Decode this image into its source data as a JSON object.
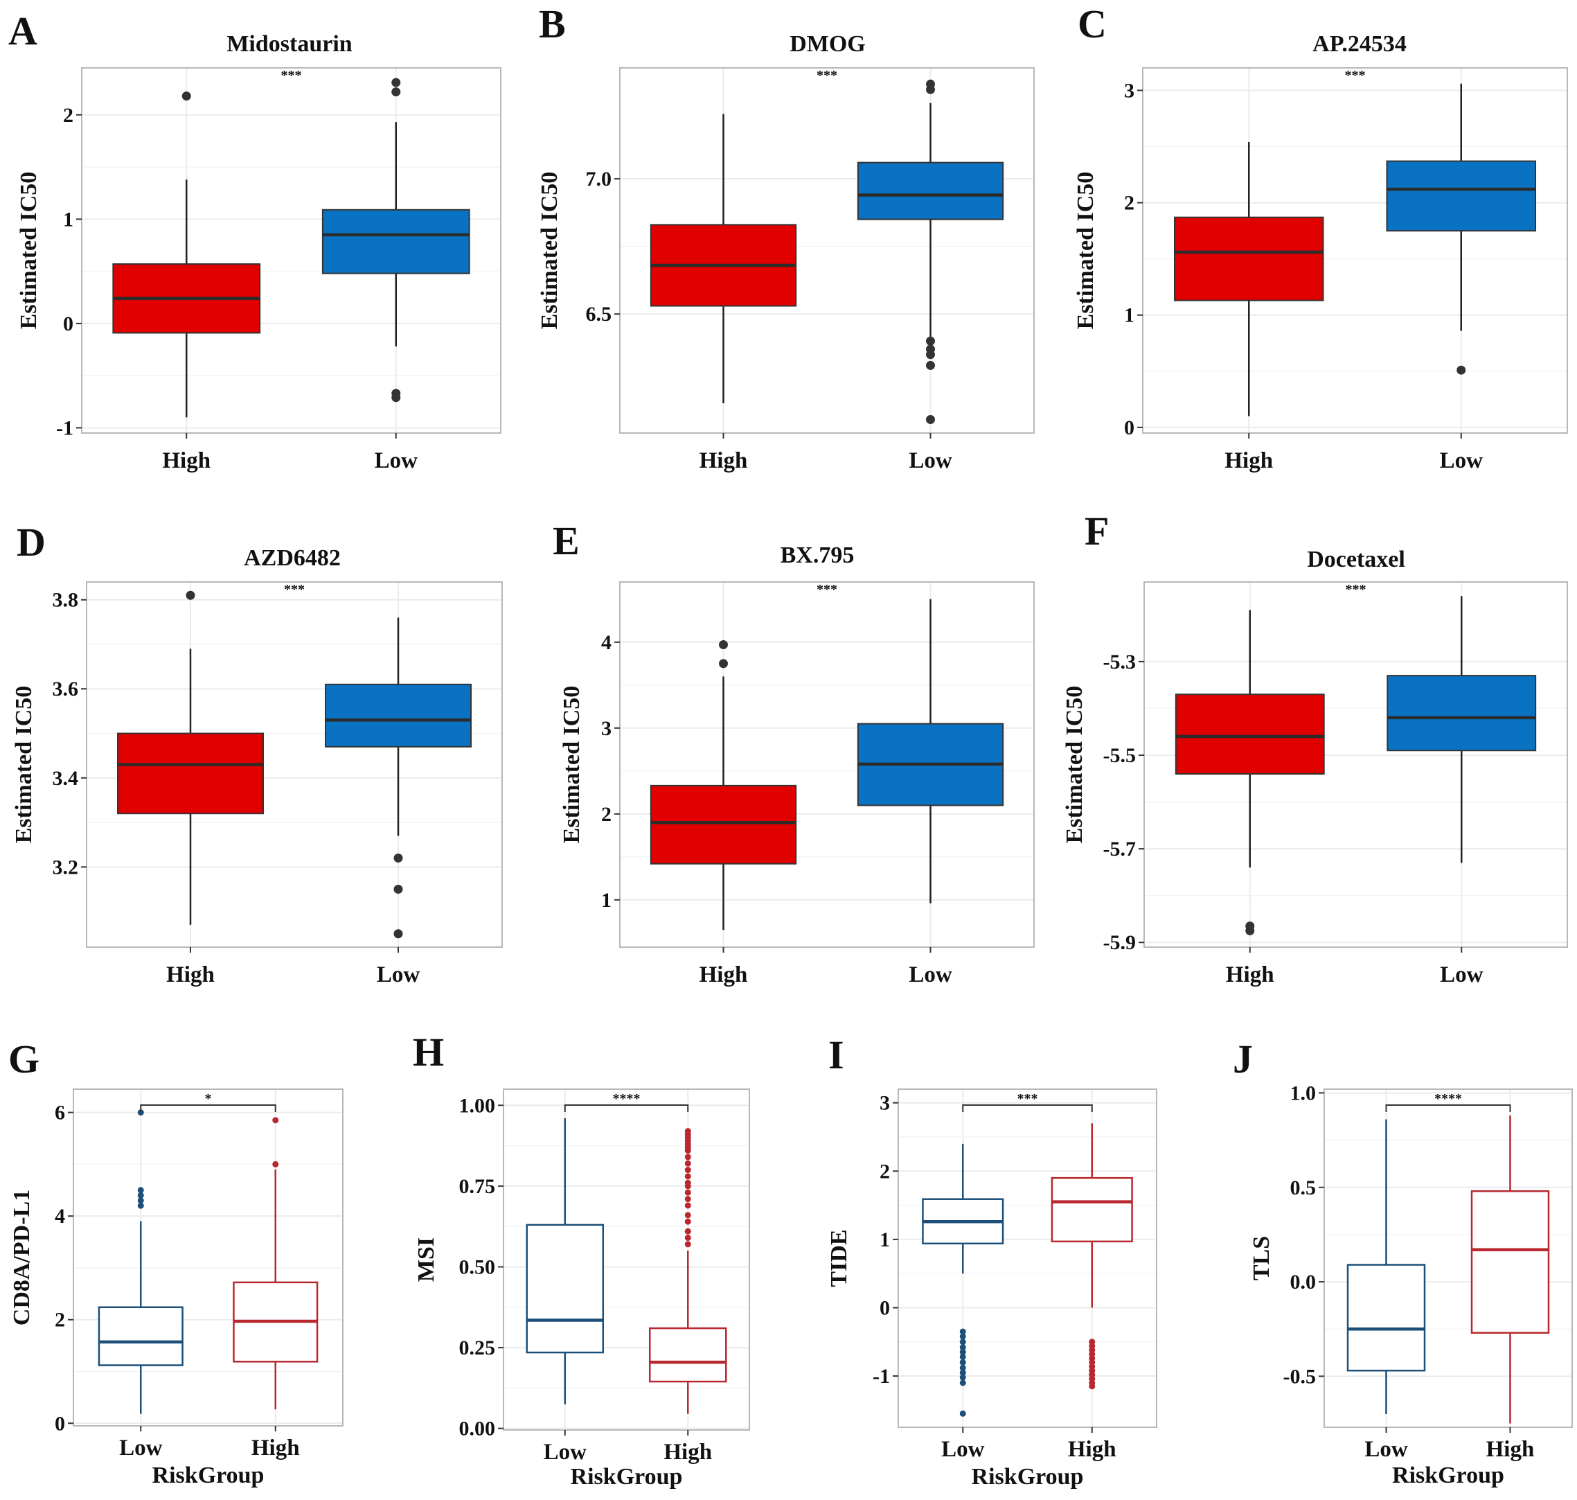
{
  "figure": {
    "colors": {
      "high_fill": "#e00000",
      "low_fill": "#0a72c2",
      "low_line": "#1c4f7a",
      "high_line": "#b8282e",
      "box_edge": "#333333",
      "median_dark": "#2b2b2b",
      "grid": "#ebebeb",
      "panel_border": "#b8b8b8"
    }
  },
  "chart_data": [
    {
      "panel": "A",
      "type": "box",
      "style": "filled",
      "title": "Midostaurin",
      "xlabel": "",
      "ylabel": "Estimated IC50",
      "significance": "***",
      "ylim": [
        -1.05,
        2.45
      ],
      "ticks": [
        -1,
        0,
        1,
        2
      ],
      "tick_labels": [
        "-1",
        "0",
        "1",
        "2"
      ],
      "categories": [
        "High",
        "Low"
      ],
      "boxes": [
        {
          "group": "High",
          "color": "high",
          "min": -0.9,
          "q1": -0.09,
          "median": 0.24,
          "q3": 0.57,
          "max": 1.38,
          "outliers": [
            2.18
          ]
        },
        {
          "group": "Low",
          "color": "low",
          "min": -0.22,
          "q1": 0.48,
          "median": 0.85,
          "q3": 1.09,
          "max": 1.93,
          "outliers": [
            2.31,
            2.22,
            -0.67,
            -0.71
          ]
        }
      ]
    },
    {
      "panel": "B",
      "type": "box",
      "style": "filled",
      "title": "DMOG",
      "xlabel": "",
      "ylabel": "Estimated IC50",
      "significance": "***",
      "ylim": [
        6.06,
        7.41
      ],
      "ticks": [
        6.5,
        7.0
      ],
      "tick_labels": [
        "6.5",
        "7.0"
      ],
      "categories": [
        "High",
        "Low"
      ],
      "boxes": [
        {
          "group": "High",
          "color": "high",
          "min": 6.17,
          "q1": 6.53,
          "median": 6.68,
          "q3": 6.83,
          "max": 7.24,
          "outliers": []
        },
        {
          "group": "Low",
          "color": "low",
          "min": 6.41,
          "q1": 6.85,
          "median": 6.94,
          "q3": 7.06,
          "max": 7.28,
          "outliers": [
            7.35,
            7.33,
            6.4,
            6.37,
            6.35,
            6.31,
            6.11
          ]
        }
      ]
    },
    {
      "panel": "C",
      "type": "box",
      "style": "filled",
      "title": "AP.24534",
      "xlabel": "",
      "ylabel": "Estimated IC50",
      "significance": "***",
      "ylim": [
        -0.05,
        3.2
      ],
      "ticks": [
        0,
        1,
        2,
        3
      ],
      "tick_labels": [
        "0",
        "1",
        "2",
        "3"
      ],
      "categories": [
        "High",
        "Low"
      ],
      "boxes": [
        {
          "group": "High",
          "color": "high",
          "min": 0.1,
          "q1": 1.13,
          "median": 1.56,
          "q3": 1.87,
          "max": 2.54,
          "outliers": []
        },
        {
          "group": "Low",
          "color": "low",
          "min": 0.86,
          "q1": 1.75,
          "median": 2.12,
          "q3": 2.37,
          "max": 3.06,
          "outliers": [
            0.51
          ]
        }
      ]
    },
    {
      "panel": "D",
      "type": "box",
      "style": "filled",
      "title": "AZD6482",
      "xlabel": "",
      "ylabel": "Estimated IC50",
      "significance": "***",
      "ylim": [
        3.02,
        3.84
      ],
      "ticks": [
        3.2,
        3.4,
        3.6,
        3.8
      ],
      "tick_labels": [
        "3.2",
        "3.4",
        "3.6",
        "3.8"
      ],
      "categories": [
        "High",
        "Low"
      ],
      "boxes": [
        {
          "group": "High",
          "color": "high",
          "min": 3.07,
          "q1": 3.32,
          "median": 3.43,
          "q3": 3.5,
          "max": 3.69,
          "outliers": [
            3.81
          ]
        },
        {
          "group": "Low",
          "color": "low",
          "min": 3.27,
          "q1": 3.47,
          "median": 3.53,
          "q3": 3.61,
          "max": 3.76,
          "outliers": [
            3.22,
            3.15,
            3.05
          ]
        }
      ]
    },
    {
      "panel": "E",
      "type": "box",
      "style": "filled",
      "title": "BX.795",
      "xlabel": "",
      "ylabel": "Estimated IC50",
      "significance": "***",
      "ylim": [
        0.45,
        4.7
      ],
      "ticks": [
        1,
        2,
        3,
        4
      ],
      "tick_labels": [
        "1",
        "2",
        "3",
        "4"
      ],
      "categories": [
        "High",
        "Low"
      ],
      "boxes": [
        {
          "group": "High",
          "color": "high",
          "min": 0.65,
          "q1": 1.42,
          "median": 1.9,
          "q3": 2.33,
          "max": 3.6,
          "outliers": [
            3.97,
            3.75
          ]
        },
        {
          "group": "Low",
          "color": "low",
          "min": 0.96,
          "q1": 2.1,
          "median": 2.58,
          "q3": 3.05,
          "max": 4.5,
          "outliers": []
        }
      ]
    },
    {
      "panel": "F",
      "type": "box",
      "style": "filled",
      "title": "Docetaxel",
      "xlabel": "",
      "ylabel": "Estimated IC50",
      "significance": "***",
      "ylim": [
        -5.91,
        -5.13
      ],
      "ticks": [
        -5.9,
        -5.7,
        -5.5,
        -5.3
      ],
      "tick_labels": [
        "-5.9",
        "-5.7",
        "-5.5",
        "-5.3"
      ],
      "categories": [
        "High",
        "Low"
      ],
      "boxes": [
        {
          "group": "High",
          "color": "high",
          "min": -5.74,
          "q1": -5.54,
          "median": -5.46,
          "q3": -5.37,
          "max": -5.19,
          "outliers": [
            -5.865,
            -5.875
          ]
        },
        {
          "group": "Low",
          "color": "low",
          "min": -5.73,
          "q1": -5.49,
          "median": -5.42,
          "q3": -5.33,
          "max": -5.16,
          "outliers": []
        }
      ]
    },
    {
      "panel": "G",
      "type": "box",
      "style": "outline",
      "title": "",
      "xlabel": "RiskGroup",
      "ylabel": "CD8A/PD-L1",
      "significance": "*",
      "ylim": [
        -0.05,
        6.45
      ],
      "ticks": [
        0,
        2,
        4,
        6
      ],
      "tick_labels": [
        "0",
        "2",
        "4",
        "6"
      ],
      "categories": [
        "Low",
        "High"
      ],
      "boxes": [
        {
          "group": "Low",
          "color": "low",
          "min": 0.18,
          "q1": 1.12,
          "median": 1.57,
          "q3": 2.24,
          "max": 3.9,
          "outliers": [
            6.0,
            4.5,
            4.4,
            4.3,
            4.2
          ]
        },
        {
          "group": "High",
          "color": "high",
          "min": 0.27,
          "q1": 1.19,
          "median": 1.97,
          "q3": 2.72,
          "max": 4.9,
          "outliers": [
            5.85,
            5.0
          ]
        }
      ]
    },
    {
      "panel": "H",
      "type": "box",
      "style": "outline",
      "title": "",
      "xlabel": "RiskGroup",
      "ylabel": "MSI",
      "significance": "****",
      "ylim": [
        -0.005,
        1.05
      ],
      "ticks": [
        0,
        0.25,
        0.5,
        0.75,
        1.0
      ],
      "tick_labels": [
        "0.00",
        "0.25",
        "0.50",
        "0.75",
        "1.00"
      ],
      "categories": [
        "Low",
        "High"
      ],
      "boxes": [
        {
          "group": "Low",
          "color": "low",
          "min": 0.075,
          "q1": 0.235,
          "median": 0.335,
          "q3": 0.63,
          "max": 0.96,
          "outliers": []
        },
        {
          "group": "High",
          "color": "high",
          "min": 0.045,
          "q1": 0.145,
          "median": 0.205,
          "q3": 0.31,
          "max": 0.55,
          "outliers": [
            0.92,
            0.91,
            0.9,
            0.89,
            0.88,
            0.87,
            0.86,
            0.84,
            0.82,
            0.8,
            0.78,
            0.76,
            0.75,
            0.73,
            0.71,
            0.69,
            0.66,
            0.64,
            0.61,
            0.59,
            0.57
          ]
        }
      ]
    },
    {
      "panel": "I",
      "type": "box",
      "style": "outline",
      "title": "",
      "xlabel": "RiskGroup",
      "ylabel": "TIDE",
      "significance": "***",
      "ylim": [
        -1.75,
        3.2
      ],
      "ticks": [
        -1,
        0,
        1,
        2,
        3
      ],
      "tick_labels": [
        "-1",
        "0",
        "1",
        "2",
        "3"
      ],
      "categories": [
        "Low",
        "High"
      ],
      "boxes": [
        {
          "group": "Low",
          "color": "low",
          "min": 0.5,
          "q1": 0.94,
          "median": 1.26,
          "q3": 1.59,
          "max": 2.4,
          "outliers": [
            -0.35,
            -0.42,
            -0.5,
            -0.58,
            -0.65,
            -0.72,
            -0.8,
            -0.88,
            -0.95,
            -1.02,
            -1.1,
            -1.55
          ]
        },
        {
          "group": "High",
          "color": "high",
          "min": 0.0,
          "q1": 0.97,
          "median": 1.55,
          "q3": 1.9,
          "max": 2.7,
          "outliers": [
            -0.5,
            -0.56,
            -0.62,
            -0.68,
            -0.74,
            -0.8,
            -0.86,
            -0.92,
            -0.98,
            -1.04,
            -1.1,
            -1.15
          ]
        }
      ]
    },
    {
      "panel": "J",
      "type": "box",
      "style": "outline",
      "title": "",
      "xlabel": "RiskGroup",
      "ylabel": "TLS",
      "significance": "****",
      "ylim": [
        -0.77,
        1.02
      ],
      "ticks": [
        -0.5,
        0.0,
        0.5,
        1.0
      ],
      "tick_labels": [
        "-0.5",
        "0.0",
        "0.5",
        "1.0"
      ],
      "categories": [
        "Low",
        "High"
      ],
      "boxes": [
        {
          "group": "Low",
          "color": "low",
          "min": -0.7,
          "q1": -0.47,
          "median": -0.25,
          "q3": 0.09,
          "max": 0.86,
          "outliers": []
        },
        {
          "group": "High",
          "color": "high",
          "min": -0.75,
          "q1": -0.27,
          "median": 0.17,
          "q3": 0.48,
          "max": 0.88,
          "outliers": []
        }
      ]
    }
  ]
}
